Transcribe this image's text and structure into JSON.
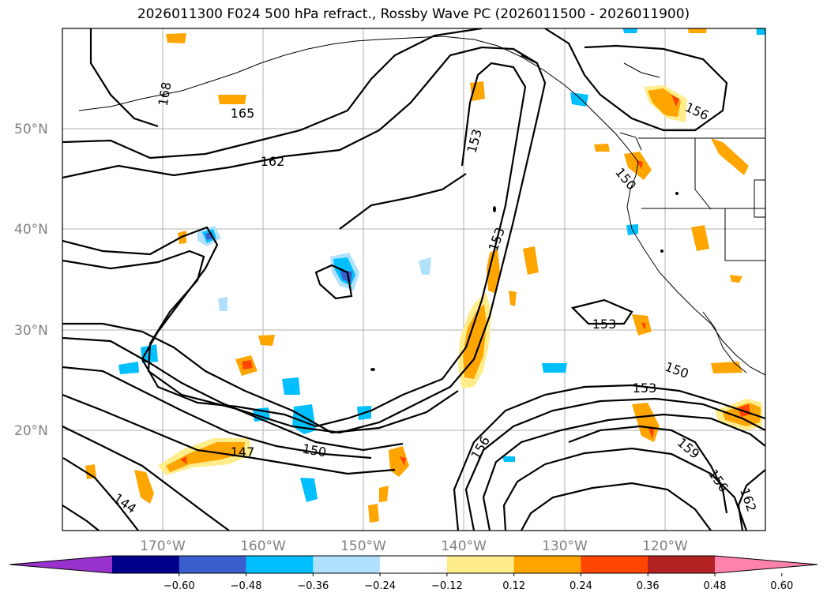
{
  "title": "2026011300 F024 500 hPa refract., Rossby Wave PC (2026011500 - 2026011900)",
  "map": {
    "lat_labels": [
      "50°N",
      "40°N",
      "30°N",
      "20°N"
    ],
    "lon_labels": [
      "170°W",
      "160°W",
      "150°W",
      "140°W",
      "130°W",
      "120°W"
    ],
    "contour_labels": [
      "168",
      "165",
      "162",
      "153",
      "153",
      "156",
      "150",
      "153",
      "150",
      "153",
      "147",
      "150",
      "144",
      "156",
      "159",
      "156",
      "162"
    ]
  },
  "colorbar": {
    "ticks": [
      "−0.60",
      "−0.48",
      "−0.36",
      "−0.24",
      "−0.12",
      "0.12",
      "0.24",
      "0.36",
      "0.48",
      "0.60"
    ],
    "colors": [
      "#9932cc",
      "#00008b",
      "#3a5fcd",
      "#00bfff",
      "#b0e2ff",
      "#ffffff",
      "#ffec8b",
      "#ffa500",
      "#ff4500",
      "#b22222",
      "#ff82ab"
    ]
  },
  "shading_colors": {
    "light_yellow": "#ffec8b",
    "orange": "#ffa500",
    "red_orange": "#ff4500",
    "light_blue": "#b0e2ff",
    "deep_sky_blue": "#00bfff",
    "royal_blue": "#3a5fcd"
  }
}
